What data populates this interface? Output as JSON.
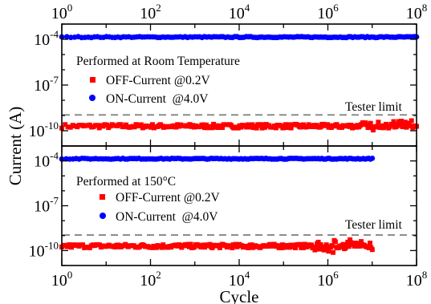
{
  "chart_data": {
    "type": "scatter",
    "xlabel": "Cycle",
    "ylabel": "Current (A)",
    "x_scale": "log",
    "y_scale": "log",
    "x_tick_exponents": [
      0,
      2,
      4,
      6,
      8
    ],
    "y_tick_exponents": [
      -10,
      -7,
      -4
    ],
    "tick_base": "10",
    "xlim": [
      1,
      100000000
    ],
    "panels": [
      {
        "id": "top",
        "annotation": "Performed at Room Temperature",
        "ylim": [
          1e-11,
          0.001
        ],
        "tester_limit": {
          "label": "Tester limit",
          "value": 1.1e-09
        },
        "series": [
          {
            "name": "OFF-Current @0.2V",
            "color": "#ff0000",
            "marker": "square",
            "x_range": [
              1,
              100000000
            ],
            "y_typical": 2e-10,
            "y_spread_high": 2.5e-10
          },
          {
            "name": "ON-Current  @4.0V",
            "color": "#0000ff",
            "marker": "circle",
            "x_range": [
              1,
              100000000
            ],
            "y_typical": 0.00014
          }
        ]
      },
      {
        "id": "bottom",
        "annotation": "Performed at 150°C",
        "ylim": [
          1e-11,
          0.001
        ],
        "tester_limit": {
          "label": "Tester limit",
          "value": 1.1e-09
        },
        "series": [
          {
            "name": "OFF-Current @0.2V",
            "color": "#ff0000",
            "marker": "square",
            "x_range": [
              1,
              10000000
            ],
            "y_typical": 2e-10,
            "y_spread_high": 2.5e-10
          },
          {
            "name": "ON-Current  @4.0V",
            "color": "#0000ff",
            "marker": "circle",
            "x_range": [
              1,
              10000000
            ],
            "y_typical": 0.00014
          }
        ]
      }
    ]
  }
}
